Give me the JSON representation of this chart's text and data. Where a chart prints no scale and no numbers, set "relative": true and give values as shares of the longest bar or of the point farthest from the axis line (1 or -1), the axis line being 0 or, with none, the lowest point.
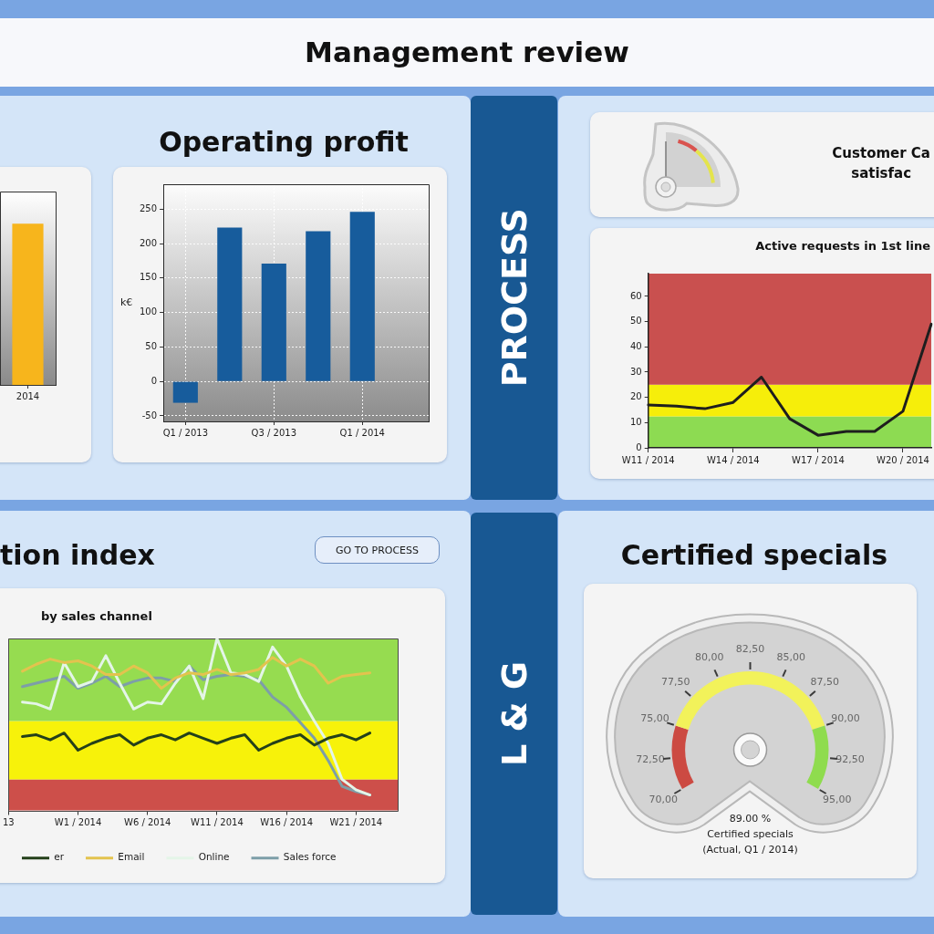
{
  "chart_data": [
    {
      "type": "other",
      "title": "Management review"
    },
    {
      "type": "bar",
      "categories": [
        "2014"
      ],
      "values": [
        1
      ],
      "color": "#f7b51c",
      "relative": true
    },
    {
      "type": "bar",
      "title": "Operating profit",
      "ylabel": "k€",
      "categories": [
        "Q1 / 2013",
        null,
        "Q3 / 2013",
        null,
        "Q1 / 2014",
        null
      ],
      "values": [
        -31,
        223,
        171,
        218,
        246,
        null
      ],
      "color": "#175c9c",
      "ylim": [
        -58,
        286
      ],
      "yticks": [
        -50,
        0,
        50,
        100,
        150,
        200,
        250
      ],
      "grid": true
    },
    {
      "type": "other",
      "title": "PROCESS"
    },
    {
      "type": "other",
      "title": "Customer Ca\nsatisfac"
    },
    {
      "type": "line",
      "title": "Active requests in 1st line",
      "categories": [
        "W11 / 2014",
        null,
        null,
        "W14 / 2014",
        null,
        null,
        "W17 / 2014",
        null,
        null,
        "W20 / 2014",
        null
      ],
      "values": [
        17,
        16.5,
        15.5,
        18,
        28,
        11.5,
        5,
        6.5,
        6.5,
        14.5,
        49
      ],
      "color": "#1e1e1e",
      "ylim": [
        0,
        69
      ],
      "yticks": [
        0,
        10,
        20,
        30,
        40,
        50,
        60
      ],
      "bands": [
        {
          "axis": "y",
          "from": 0,
          "to": 12.5,
          "color": "#8ddb52"
        },
        {
          "axis": "y",
          "from": 12.5,
          "to": 25,
          "color": "#f6ee0a"
        },
        {
          "axis": "y",
          "from": 25,
          "to": 69,
          "color": "#c9504f"
        }
      ]
    },
    {
      "type": "line",
      "title": "tion index",
      "subtitle": "by sales channel",
      "annotations": [
        "GO TO PROCESS"
      ],
      "relative": true,
      "legend": "bottom",
      "categories": [
        "13",
        null,
        null,
        null,
        null,
        "W1 / 2014",
        null,
        null,
        null,
        null,
        "W6 / 2014",
        null,
        null,
        null,
        null,
        "W11 / 2014",
        null,
        null,
        null,
        null,
        "W16 / 2014",
        null,
        null,
        null,
        null,
        "W21 / 2014",
        null,
        null,
        null
      ],
      "series": [
        {
          "name": "er",
          "color": "#24401a",
          "values": [
            null,
            0.43,
            0.44,
            0.41,
            0.45,
            0.35,
            0.39,
            0.42,
            0.44,
            0.38,
            0.42,
            0.44,
            0.41,
            0.45,
            0.42,
            0.39,
            0.42,
            0.44,
            0.35,
            0.39,
            0.42,
            0.44,
            0.38,
            0.42,
            0.44,
            0.41,
            0.45,
            null,
            null
          ]
        },
        {
          "name": "Email",
          "color": "#e3c34e",
          "values": [
            null,
            0.81,
            0.85,
            0.88,
            0.86,
            0.87,
            0.84,
            0.79,
            0.79,
            0.84,
            0.8,
            0.71,
            0.77,
            0.8,
            0.79,
            0.82,
            0.79,
            0.8,
            0.82,
            0.89,
            0.84,
            0.88,
            0.84,
            0.74,
            0.78,
            0.79,
            0.8,
            null,
            null
          ]
        },
        {
          "name": "Online",
          "color": "#e4f5e8",
          "values": [
            null,
            0.63,
            0.62,
            0.59,
            0.86,
            0.72,
            0.75,
            0.9,
            0.74,
            0.59,
            0.63,
            0.62,
            0.74,
            0.84,
            0.65,
            1,
            0.8,
            0.79,
            0.75,
            0.95,
            0.84,
            0.66,
            0.52,
            0.39,
            0.18,
            0.12,
            0.09,
            null,
            null
          ]
        },
        {
          "name": "Sales force",
          "color": "#7d9ea8",
          "values": [
            null,
            0.72,
            0.74,
            0.76,
            0.78,
            0.71,
            0.74,
            0.78,
            0.72,
            0.75,
            0.77,
            0.77,
            0.75,
            0.84,
            0.76,
            0.78,
            0.79,
            0.78,
            0.76,
            0.66,
            0.6,
            0.51,
            0.42,
            0.29,
            0.14,
            0.11,
            0.09,
            null,
            null
          ]
        }
      ],
      "bands": [
        {
          "axis": "y",
          "from": 0,
          "to": 0.18,
          "color": "#cd4f4a"
        },
        {
          "axis": "y",
          "from": 0.18,
          "to": 0.52,
          "color": "#f7f20a"
        },
        {
          "axis": "y",
          "from": 0.52,
          "to": 1,
          "color": "#96dc50"
        }
      ]
    },
    {
      "type": "other",
      "title": "L & G"
    },
    {
      "type": "donut",
      "title": "Certified specials",
      "categories": [
        null,
        null,
        null
      ],
      "values": [
        20,
        60,
        20
      ],
      "colors": [
        "#cc4a42",
        "#f2f25a",
        "#8fdc4e"
      ],
      "annotations": [
        "70,00",
        "72,50",
        "75,00",
        "77,50",
        "80,00",
        "82,50",
        "85,00",
        "87,50",
        "90,00",
        "92,50",
        "95,00",
        "89.00 %",
        "Certified specials",
        "(Actual, Q1 / 2014)"
      ]
    }
  ]
}
